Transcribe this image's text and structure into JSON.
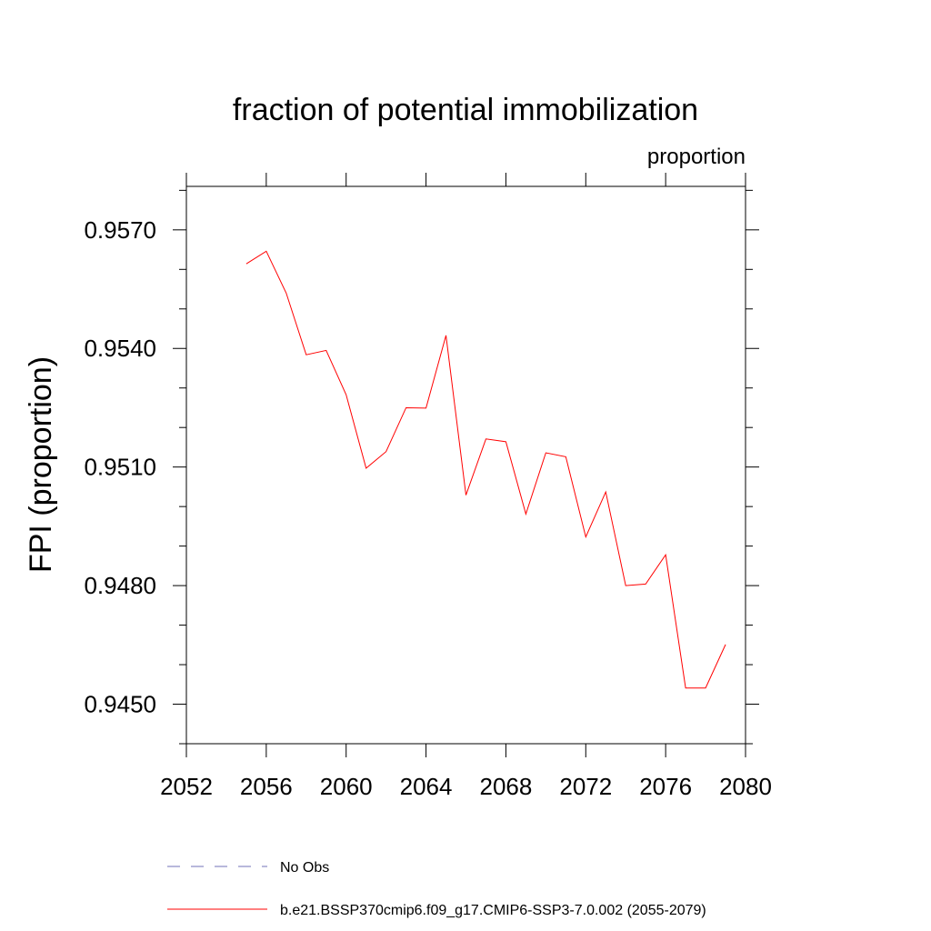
{
  "chart_data": {
    "type": "line",
    "title": "fraction of potential immobilization",
    "subtitle": "proportion",
    "xlabel": "",
    "ylabel": "FPI  (proportion)",
    "xlim": [
      2052,
      2080
    ],
    "ylim": [
      0.944,
      0.9581
    ],
    "x_ticks": [
      2052,
      2056,
      2060,
      2064,
      2068,
      2072,
      2076,
      2080
    ],
    "x_tick_labels": [
      "2052",
      "2056",
      "2060",
      "2064",
      "2068",
      "2072",
      "2076",
      "2080"
    ],
    "y_ticks": [
      0.945,
      0.948,
      0.951,
      0.954,
      0.957
    ],
    "y_tick_labels": [
      "0.9450",
      "0.9480",
      "0.9510",
      "0.9540",
      "0.9570"
    ],
    "grid": false,
    "legend_position": "bottom",
    "series": [
      {
        "name": "b.e21.BSSP370cmip6.f09_g17.CMIP6-SSP3-7.0.002 (2055-2079)",
        "color": "#ff0000",
        "style": "solid",
        "x": [
          2055,
          2056,
          2057,
          2058,
          2059,
          2060,
          2061,
          2062,
          2063,
          2064,
          2065,
          2066,
          2067,
          2068,
          2069,
          2070,
          2071,
          2072,
          2073,
          2074,
          2075,
          2076,
          2077,
          2078,
          2079
        ],
        "y": [
          0.95614,
          0.95646,
          0.9554,
          0.95384,
          0.95395,
          0.95283,
          0.95097,
          0.95139,
          0.9525,
          0.95249,
          0.95433,
          0.95029,
          0.95171,
          0.95164,
          0.94981,
          0.95136,
          0.95126,
          0.94923,
          0.95037,
          0.948,
          0.94804,
          0.94878,
          0.94541,
          0.94541,
          0.94651
        ]
      }
    ],
    "legend": [
      {
        "label": "No Obs",
        "color": "#7070b8",
        "style": "dashed"
      },
      {
        "label": "b.e21.BSSP370cmip6.f09_g17.CMIP6-SSP3-7.0.002 (2055-2079)",
        "color": "#ff0000",
        "style": "solid"
      }
    ]
  }
}
